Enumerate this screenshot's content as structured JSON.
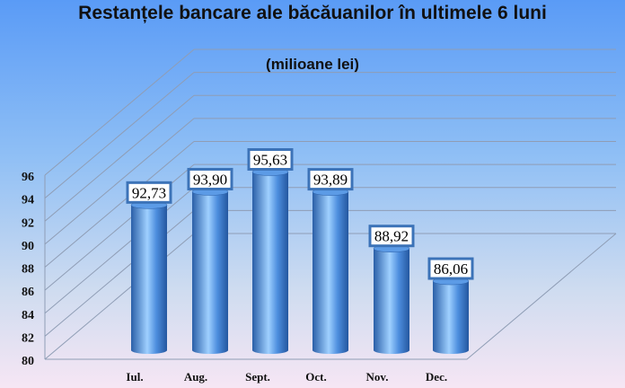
{
  "chart_data": {
    "type": "bar",
    "title": "Restanțele bancare ale băcăuanilor în ultimele 6 luni",
    "subtitle": "(milioane lei)",
    "categories": [
      "Iul.",
      "Aug.",
      "Sept.",
      "Oct.",
      "Nov.",
      "Dec."
    ],
    "values": [
      92.73,
      93.9,
      95.63,
      93.89,
      88.92,
      86.06
    ],
    "data_labels": [
      "92,73",
      "93,90",
      "95,63",
      "93,89",
      "88,92",
      "86,06"
    ],
    "ylim": [
      80,
      96
    ],
    "yticks": [
      "80",
      "82",
      "84",
      "86",
      "88",
      "90",
      "92",
      "94",
      "96"
    ],
    "grid": true,
    "style": "3d-cylinder",
    "bar_color": "#3f7fd0"
  }
}
